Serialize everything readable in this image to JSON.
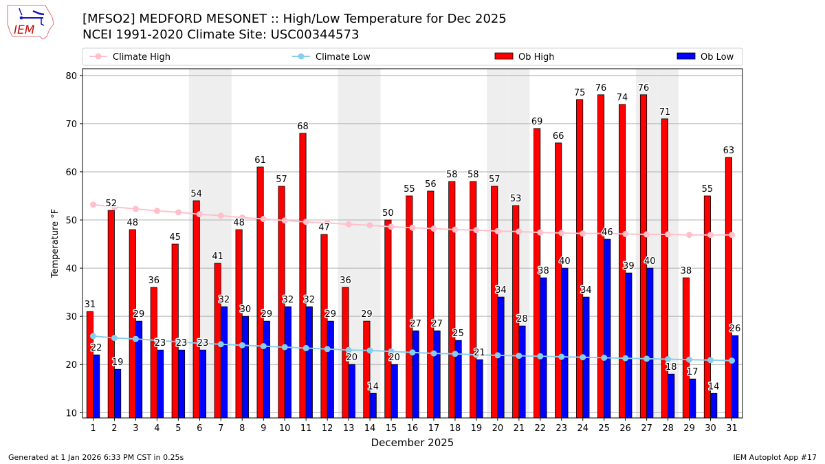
{
  "header": {
    "title_line1": "[MFSO2] MEDFORD MESONET :: High/Low Temperature for Dec 2025",
    "title_line2": "NCEI 1991-2020 Climate Site: USC00344573",
    "logo_text": "IEM"
  },
  "footer": {
    "generated": "Generated at 1 Jan 2026 6:33 PM CST in 0.25s",
    "app": "IEM Autoplot App #17"
  },
  "chart_data": {
    "type": "bar",
    "title": "[MFSO2] MEDFORD MESONET :: High/Low Temperature for Dec 2025",
    "xlabel": "December 2025",
    "ylabel": "Temperature °F",
    "ylim": [
      8.9,
      81.4
    ],
    "xlim": [
      0.5,
      31.5
    ],
    "yticks": [
      10,
      20,
      30,
      40,
      50,
      60,
      70,
      80
    ],
    "grid": "horizontal",
    "legend_position": "top",
    "shaded_days": [
      6,
      7,
      13,
      14,
      20,
      21,
      27,
      28
    ],
    "categories": [
      1,
      2,
      3,
      4,
      5,
      6,
      7,
      8,
      9,
      10,
      11,
      12,
      13,
      14,
      15,
      16,
      17,
      18,
      19,
      20,
      21,
      22,
      23,
      24,
      25,
      26,
      27,
      28,
      29,
      30,
      31
    ],
    "series": [
      {
        "name": "Ob High",
        "kind": "bar",
        "color": "#ff0000",
        "values": [
          31,
          52,
          48,
          36,
          45,
          54,
          41,
          48,
          61,
          57,
          68,
          47,
          36,
          29,
          50,
          55,
          56,
          58,
          58,
          57,
          53,
          69,
          66,
          75,
          76,
          74,
          76,
          71,
          38,
          55,
          63
        ]
      },
      {
        "name": "Ob Low",
        "kind": "bar",
        "color": "#0000ff",
        "values": [
          22,
          19,
          29,
          23,
          23,
          23,
          32,
          30,
          29,
          32,
          32,
          29,
          20,
          14,
          20,
          27,
          27,
          25,
          21,
          34,
          28,
          38,
          40,
          34,
          46,
          39,
          40,
          18,
          17,
          14,
          26
        ]
      },
      {
        "name": "Climate High",
        "kind": "line",
        "color": "#ffc0cb",
        "values": [
          53.2,
          52.7,
          52.3,
          51.9,
          51.6,
          51.2,
          50.9,
          50.5,
          50.2,
          49.9,
          49.6,
          49.4,
          49.1,
          48.9,
          48.6,
          48.4,
          48.2,
          48.0,
          47.9,
          47.7,
          47.6,
          47.4,
          47.3,
          47.2,
          47.2,
          47.1,
          47.0,
          47.0,
          46.9,
          46.9,
          46.9
        ]
      },
      {
        "name": "Climate Low",
        "kind": "line",
        "color": "#87ceeb",
        "values": [
          25.9,
          25.5,
          25.3,
          25.0,
          24.7,
          24.4,
          24.2,
          24.0,
          23.8,
          23.6,
          23.4,
          23.2,
          23.0,
          22.9,
          22.7,
          22.5,
          22.3,
          22.2,
          22.0,
          21.9,
          21.8,
          21.7,
          21.6,
          21.5,
          21.4,
          21.3,
          21.2,
          21.1,
          21.0,
          20.9,
          20.8
        ]
      }
    ],
    "legend": [
      "Climate High",
      "Climate Low",
      "Ob High",
      "Ob Low"
    ]
  }
}
